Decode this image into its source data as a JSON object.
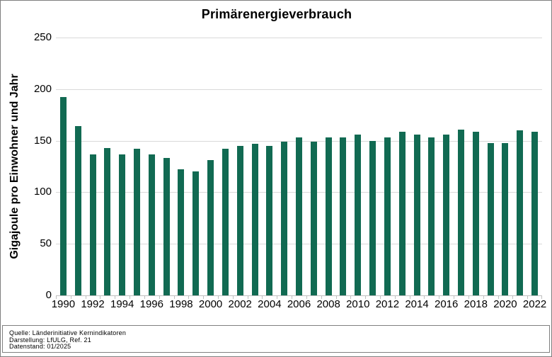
{
  "page": {
    "title": "Primärenergieverbrauch"
  },
  "chart_data": {
    "type": "bar",
    "title": "Primärenergieverbrauch",
    "xlabel": "",
    "ylabel": "Gigajoule pro Einwohner und Jahr",
    "ylim": [
      0,
      250
    ],
    "yticks": [
      0,
      50,
      100,
      150,
      200,
      250
    ],
    "grid": true,
    "legend": "none",
    "bar_color": "#116a52",
    "x_tick_step": 2,
    "categories": [
      1990,
      1991,
      1992,
      1993,
      1994,
      1995,
      1996,
      1997,
      1998,
      1999,
      2000,
      2001,
      2002,
      2003,
      2004,
      2005,
      2006,
      2007,
      2008,
      2009,
      2010,
      2011,
      2012,
      2013,
      2014,
      2015,
      2016,
      2017,
      2018,
      2019,
      2020,
      2021,
      2022
    ],
    "values": [
      192,
      164,
      137,
      143,
      137,
      142,
      137,
      133,
      122,
      120,
      131,
      142,
      145,
      147,
      145,
      149,
      153,
      149,
      153,
      153,
      156,
      150,
      153,
      159,
      156,
      153,
      156,
      161,
      159,
      148,
      148,
      160,
      159
    ]
  },
  "footer": {
    "lines": [
      "Quelle: Länderinitiative Kernindikatoren",
      "Darstellung: LfULG, Ref. 21",
      "Datenstand: 01/2025"
    ]
  },
  "colors": {
    "bar": "#116a52",
    "gridline": "#d9d9d9",
    "axis": "#bfbfbf",
    "border": "#7f7f7f"
  }
}
